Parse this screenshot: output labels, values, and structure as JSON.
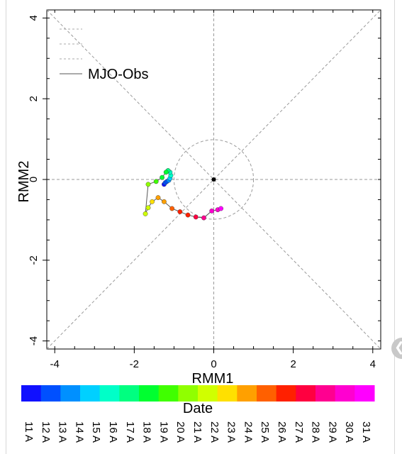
{
  "chart_data": {
    "type": "scatter",
    "title": "",
    "xlabel": "RMM1",
    "ylabel": "RMM2",
    "xlim": [
      -4.2,
      4.2
    ],
    "ylim": [
      -4.2,
      4.2
    ],
    "xticks": [
      -4,
      -2,
      0,
      2,
      4
    ],
    "yticks": [
      4,
      2,
      0,
      -2,
      -4
    ],
    "xtick_labels": [
      "-4",
      "-2",
      "0",
      "2",
      "4"
    ],
    "ytick_labels": [
      "4",
      "2",
      "0",
      "-2",
      "-4"
    ],
    "grid": false,
    "legend_position": "top-left",
    "series": [
      {
        "name": "MJO-Obs",
        "color": "#555555",
        "x": [
          -1.25,
          -1.22,
          -1.18,
          -1.13,
          -1.1,
          -1.08,
          -1.1,
          -1.15,
          -1.2,
          -1.3,
          -1.45,
          -1.65,
          -1.72,
          -1.65,
          -1.55,
          -1.4,
          -1.25,
          -1.05,
          -0.85,
          -0.65,
          -0.45,
          -0.25,
          -0.05,
          0.1,
          0.18
        ],
        "y": [
          -0.12,
          -0.08,
          -0.05,
          -0.02,
          0.03,
          0.1,
          0.18,
          0.22,
          0.18,
          0.05,
          -0.05,
          -0.12,
          -0.85,
          -0.7,
          -0.55,
          -0.45,
          -0.55,
          -0.72,
          -0.8,
          -0.88,
          -0.93,
          -0.95,
          -0.78,
          -0.75,
          -0.72
        ]
      }
    ],
    "reference_circle_radius": 1,
    "colorbar": {
      "label": "Date",
      "colors": [
        "#1010ff",
        "#0050ff",
        "#0090ff",
        "#00d0ff",
        "#00ffc8",
        "#00ff80",
        "#00ff30",
        "#40ff00",
        "#90ff00",
        "#d0ff00",
        "#ffe000",
        "#ffa000",
        "#ff6000",
        "#ff2000",
        "#ff0040",
        "#ff0090",
        "#ff00d0",
        "#ff00ff"
      ],
      "dates": [
        "11 A",
        "12 A",
        "13 A",
        "14 A",
        "15 A",
        "16 A",
        "17 A",
        "18 A",
        "19 A",
        "20 A",
        "21 A",
        "22 A",
        "23 A",
        "24 A",
        "25 A",
        "26 A",
        "27 A",
        "28 A",
        "29 A",
        "30 A",
        "31 A"
      ]
    }
  }
}
